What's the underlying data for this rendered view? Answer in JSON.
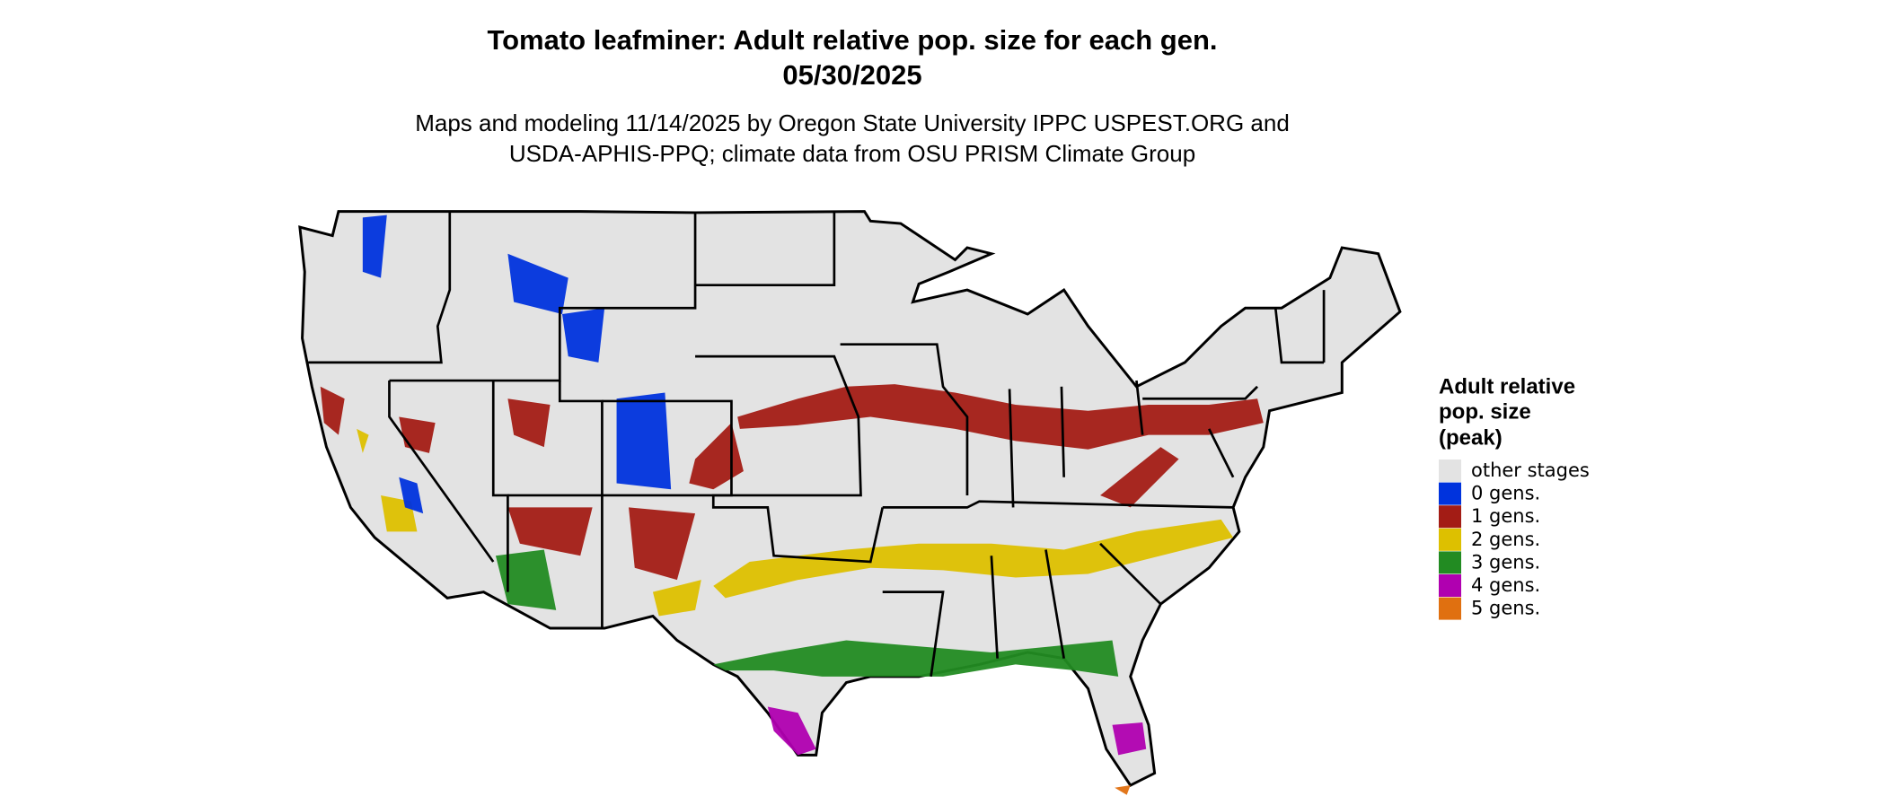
{
  "header": {
    "title": "Tomato leafminer: Adult relative pop. size for each gen.",
    "date": "05/30/2025",
    "subtitle_lines": [
      "Maps and modeling 11/14/2025 by Oregon State University IPPC USPEST.ORG and",
      "USDA-APHIS-PPQ; climate data from OSU PRISM Climate Group"
    ]
  },
  "legend": {
    "title_lines": [
      "Adult relative",
      "pop. size",
      "(peak)"
    ],
    "items": [
      {
        "label": "other stages",
        "color": "#e3e3e3"
      },
      {
        "label": "0 gens.",
        "color": "#0033dd"
      },
      {
        "label": "1 gens.",
        "color": "#a31c15"
      },
      {
        "label": "2 gens.",
        "color": "#ddc000"
      },
      {
        "label": "3 gens.",
        "color": "#228b22"
      },
      {
        "label": "4 gens.",
        "color": "#b000b0"
      },
      {
        "label": "5 gens.",
        "color": "#e07010"
      }
    ]
  }
}
